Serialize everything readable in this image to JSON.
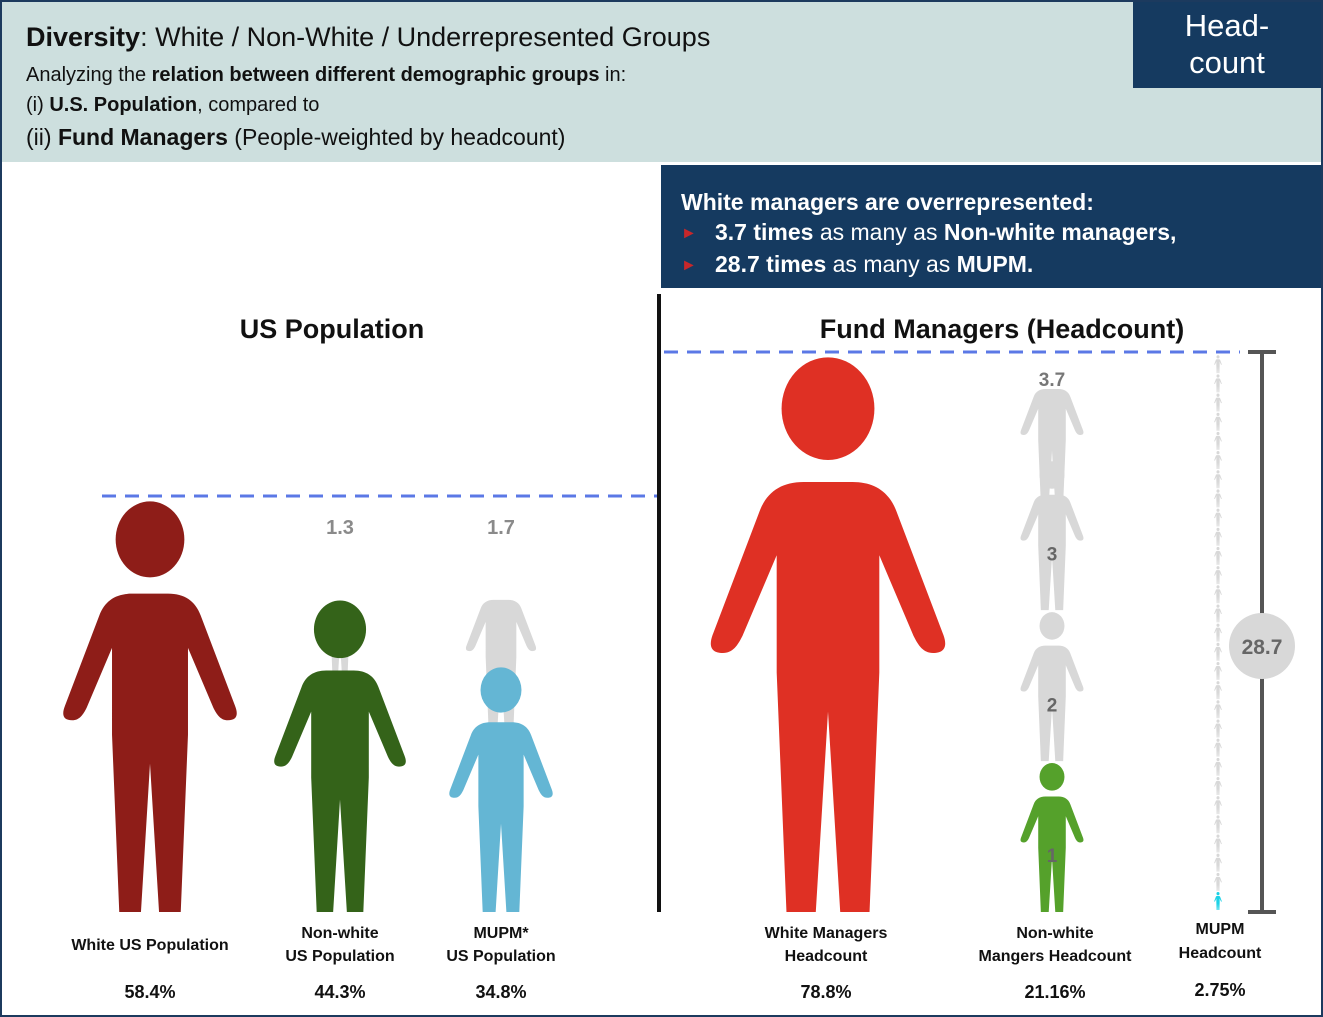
{
  "header": {
    "title_bold": "Diversity",
    "title_rest": ": White / Non-White / Underrepresented Groups",
    "subtitle_pre": "Analyzing the ",
    "subtitle_bold": "relation between different demographic groups",
    "subtitle_post": " in:",
    "line1_pre": "(i) ",
    "line1_bold": "U.S. Population",
    "line1_post": ", compared to",
    "line2_pre": "(ii) ",
    "line2_bold": "Fund Managers",
    "line2_post": " (People-weighted by headcount)",
    "badge_line1": "Head-",
    "badge_line2": "count"
  },
  "callout": {
    "heading": "White managers are overrepresented:",
    "row1_bold": "3.7 times",
    "row1_mid": " as many as ",
    "row1_bold2": "Non-white managers,",
    "row2_bold": "28.7 times",
    "row2_mid": " as many as ",
    "row2_bold2": "MUPM."
  },
  "chart_data": [
    {
      "type": "pictograph",
      "title": "US Population",
      "categories": [
        "White US Population",
        "Non-white US Population",
        "MUPM* US Population"
      ],
      "label_lines": [
        [
          "White US Population"
        ],
        [
          "Non-white",
          "US Population"
        ],
        [
          "MUPM*",
          "US Population"
        ]
      ],
      "values": [
        58.4,
        44.3,
        34.8
      ],
      "value_labels": [
        "58.4%",
        "44.3%",
        "34.8%"
      ],
      "ratio_labels": [
        "",
        "1.3",
        "1.7"
      ],
      "colors": [
        "#8e1d18",
        "#346319",
        "#64b6d4"
      ]
    },
    {
      "type": "pictograph",
      "title": "Fund Managers (Headcount)",
      "categories": [
        "White Managers Headcount",
        "Non-white Mangers Headcount",
        "MUPM Headcount"
      ],
      "label_lines": [
        [
          "White Managers",
          "Headcount"
        ],
        [
          "Non-white",
          "Mangers Headcount"
        ],
        [
          "MUPM",
          "Headcount"
        ]
      ],
      "values": [
        78.8,
        21.16,
        2.75
      ],
      "value_labels": [
        "78.8%",
        "21.16%",
        "2.75%"
      ],
      "stack_labels": [
        "1",
        "2",
        "3",
        "3.7"
      ],
      "ratio_label": "28.7",
      "colors": [
        "#df3024",
        "#55a12b",
        "#1cd2e6"
      ],
      "ghost_color": "#d8d8d8"
    }
  ]
}
